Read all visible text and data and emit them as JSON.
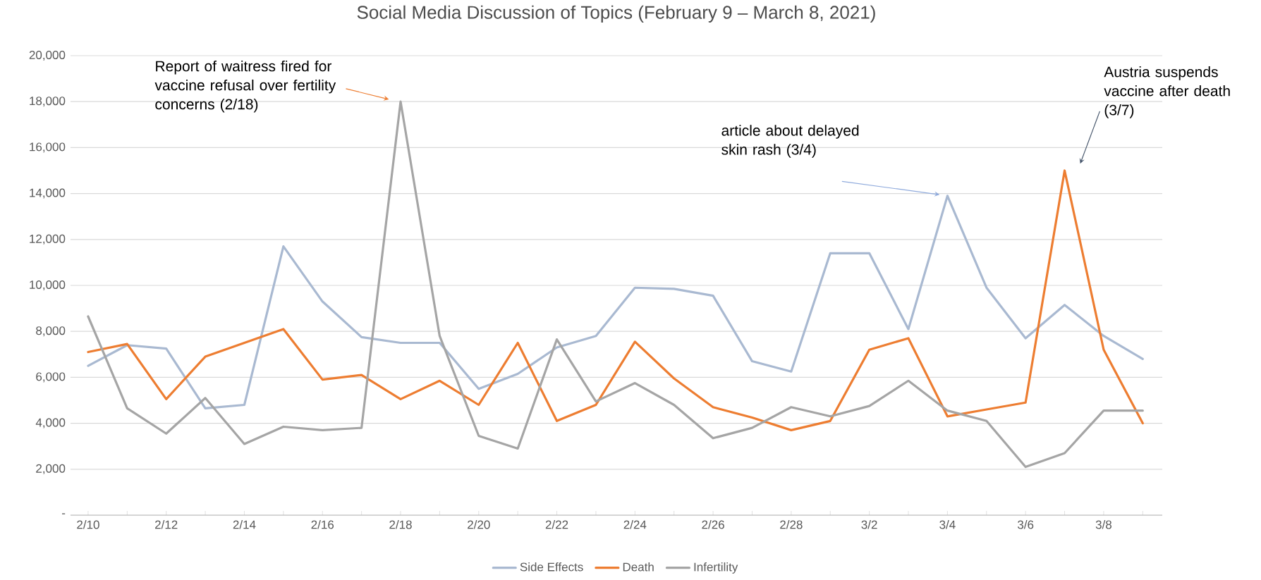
{
  "chart_data": {
    "type": "line",
    "title": "Social Media Discussion of Topics (February 9 – March 8, 2021)",
    "categories": [
      "2/10",
      null,
      "2/12",
      null,
      "2/14",
      null,
      "2/16",
      null,
      "2/18",
      null,
      "2/20",
      null,
      "2/22",
      null,
      "2/24",
      null,
      "2/26",
      null,
      "2/28",
      null,
      "3/2",
      null,
      "3/4",
      null,
      "3/6",
      null,
      "3/8",
      null
    ],
    "series": [
      {
        "name": "Side Effects",
        "color": "#a9b9d1",
        "values": [
          6500,
          7400,
          7250,
          4650,
          4800,
          11700,
          9300,
          7750,
          7500,
          7500,
          5500,
          6150,
          7300,
          7800,
          9900,
          9850,
          9550,
          6700,
          6250,
          11400,
          11400,
          8100,
          13900,
          9900,
          7700,
          9150,
          7800,
          6800
        ]
      },
      {
        "name": "Death",
        "color": "#ed7d31",
        "values": [
          7100,
          7450,
          5050,
          6900,
          7500,
          8100,
          5900,
          6100,
          5050,
          5850,
          4800,
          7500,
          4100,
          4800,
          7550,
          5950,
          4700,
          4250,
          3700,
          4100,
          7200,
          7700,
          4300,
          4600,
          4900,
          15000,
          7200,
          4000
        ]
      },
      {
        "name": "Infertility",
        "color": "#a5a5a5",
        "values": [
          8650,
          4650,
          3550,
          5100,
          3100,
          3850,
          3700,
          3800,
          18000,
          7800,
          3450,
          2900,
          7650,
          4950,
          5750,
          4800,
          3350,
          3800,
          4700,
          4300,
          4750,
          5850,
          4550,
          4100,
          2100,
          2700,
          4550,
          4550
        ]
      }
    ],
    "ylim": [
      0,
      20000
    ],
    "yticks": [
      {
        "value": 0,
        "label": "-"
      },
      {
        "value": 2000,
        "label": "2,000"
      },
      {
        "value": 4000,
        "label": "4,000"
      },
      {
        "value": 6000,
        "label": "6,000"
      },
      {
        "value": 8000,
        "label": "8,000"
      },
      {
        "value": 10000,
        "label": "10,000"
      },
      {
        "value": 12000,
        "label": "12,000"
      },
      {
        "value": 14000,
        "label": "14,000"
      },
      {
        "value": 16000,
        "label": "16,000"
      },
      {
        "value": 18000,
        "label": "18,000"
      },
      {
        "value": 20000,
        "label": "20,000"
      }
    ],
    "grid": "y",
    "legend": "bottom",
    "marker": "none",
    "line_style": "solid",
    "annotations": [
      "Report of waitress fired for vaccine refusal over fertility concerns (2/18)",
      "article about delayed skin rash (3/4)",
      "Austria suspends vaccine after death (3/7)"
    ]
  }
}
